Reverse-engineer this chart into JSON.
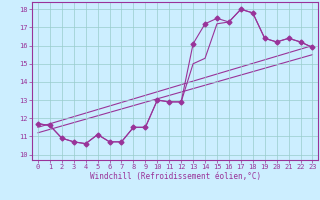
{
  "xlabel": "Windchill (Refroidissement éolien,°C)",
  "background_color": "#cceeff",
  "grid_color": "#99cccc",
  "line_color": "#993399",
  "xlim": [
    -0.5,
    23.5
  ],
  "ylim": [
    9.7,
    18.4
  ],
  "xticks": [
    0,
    1,
    2,
    3,
    4,
    5,
    6,
    7,
    8,
    9,
    10,
    11,
    12,
    13,
    14,
    15,
    16,
    17,
    18,
    19,
    20,
    21,
    22,
    23
  ],
  "yticks": [
    10,
    11,
    12,
    13,
    14,
    15,
    16,
    17,
    18
  ],
  "series1_x": [
    0,
    1,
    2,
    3,
    4,
    5,
    6,
    7,
    8,
    9,
    10,
    11,
    12,
    13,
    14,
    15,
    16,
    17,
    18,
    19,
    20,
    21,
    22,
    23
  ],
  "series1_y": [
    11.7,
    11.6,
    10.9,
    10.7,
    10.6,
    11.1,
    10.7,
    10.7,
    11.5,
    11.5,
    13.0,
    12.9,
    12.9,
    16.1,
    17.2,
    17.5,
    17.3,
    18.0,
    17.8,
    16.4,
    16.2,
    16.4,
    16.2,
    15.9
  ],
  "series2_x": [
    0,
    1,
    2,
    3,
    4,
    5,
    6,
    7,
    8,
    9,
    10,
    11,
    12,
    13,
    14,
    15,
    16,
    17,
    18,
    19,
    20,
    21,
    22,
    23
  ],
  "series2_y": [
    11.7,
    11.6,
    10.9,
    10.7,
    10.6,
    11.1,
    10.7,
    10.7,
    11.5,
    11.5,
    13.0,
    12.9,
    12.9,
    15.0,
    15.3,
    17.2,
    17.3,
    18.0,
    17.8,
    16.4,
    16.2,
    16.4,
    16.2,
    15.9
  ],
  "trend1_x": [
    0,
    23
  ],
  "trend1_y": [
    11.5,
    16.0
  ],
  "trend2_x": [
    0,
    23
  ],
  "trend2_y": [
    11.2,
    15.5
  ]
}
